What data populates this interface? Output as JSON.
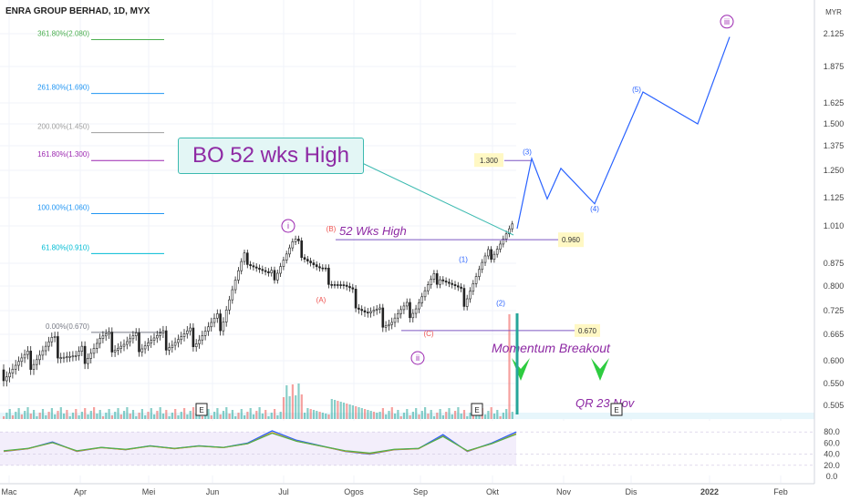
{
  "title": "ENRA GROUP BERHAD, 1D, MYX",
  "currency": "MYR",
  "callout": "BO 52 wks High",
  "annotations": {
    "wks_high": "52 Wks High",
    "momentum": "Momentum Breakout",
    "qr": "QR 23 Nov",
    "box_1300": "1.300",
    "box_0960": "0.960",
    "box_0670": "0.670",
    "earnings": "E"
  },
  "colors": {
    "up": "#26a69a",
    "down": "#ef5350",
    "projection": "#2962ff",
    "purple": "#9c27b0",
    "green_arrow": "#2ecc40",
    "callout_bg": "#e3f6f5",
    "callout_border": "#3cbab0"
  },
  "chart_data": [
    {
      "type": "candlestick",
      "title": "ENRA GROUP BERHAD, 1D, MYX",
      "x_ticks": [
        "Mac",
        "Apr",
        "Mei",
        "Jun",
        "Jul",
        "Ogos",
        "Sep",
        "Okt",
        "Nov",
        "Dis",
        "2022",
        "Feb"
      ],
      "y_ticks": [
        0.505,
        0.55,
        0.6,
        0.665,
        0.725,
        0.8,
        0.875,
        1.01,
        1.125,
        1.25,
        1.375,
        1.5,
        1.625,
        1.875,
        2.125
      ],
      "y_unit": "MYR",
      "close_series": [
        {
          "month": "Mac",
          "close": 0.58
        },
        {
          "month": "Mac",
          "close": 0.6
        },
        {
          "month": "Apr",
          "close": 0.64
        },
        {
          "month": "Apr",
          "close": 0.6
        },
        {
          "month": "Apr",
          "close": 0.65
        },
        {
          "month": "Mei",
          "close": 0.64
        },
        {
          "month": "Mei",
          "close": 0.65
        },
        {
          "month": "Jun",
          "close": 0.65
        },
        {
          "month": "Jun",
          "close": 0.66
        },
        {
          "month": "Jul",
          "close": 0.7
        },
        {
          "month": "Jul",
          "close": 0.9
        },
        {
          "month": "Jul",
          "close": 0.82
        },
        {
          "month": "Ogos",
          "close": 0.95
        },
        {
          "month": "Ogos",
          "close": 0.85
        },
        {
          "month": "Ogos",
          "close": 0.8
        },
        {
          "month": "Sep",
          "close": 0.72
        },
        {
          "month": "Sep",
          "close": 0.7
        },
        {
          "month": "Sep",
          "close": 0.74
        },
        {
          "month": "Okt",
          "close": 0.84
        },
        {
          "month": "Okt",
          "close": 0.76
        },
        {
          "month": "Okt",
          "close": 0.9
        },
        {
          "month": "Okt",
          "close": 1.0
        }
      ],
      "fibonacci": [
        {
          "label": "361.80%(2.080)",
          "value": 2.08
        },
        {
          "label": "261.80%(1.690)",
          "value": 1.69
        },
        {
          "label": "200.00%(1.450)",
          "value": 1.45
        },
        {
          "label": "161.80%(1.300)",
          "value": 1.3
        },
        {
          "label": "100.00%(1.060)",
          "value": 1.06
        },
        {
          "label": "61.80%(0.910)",
          "value": 0.91
        },
        {
          "label": "0.00%(0.670)",
          "value": 0.67
        }
      ],
      "levels": [
        {
          "name": "52 Wks High",
          "value": 0.96
        },
        {
          "name": "0.670",
          "value": 0.67
        }
      ],
      "wave_labels": [
        {
          "label": "i",
          "value": 1.0
        },
        {
          "label": "ii",
          "value": 0.6
        },
        {
          "label": "iii",
          "value": 2.2
        },
        {
          "label": "(A)",
          "value": 0.75
        },
        {
          "label": "(B)",
          "value": 0.99
        },
        {
          "label": "(C)",
          "value": 0.66
        },
        {
          "label": "(1)",
          "value": 0.88
        },
        {
          "label": "(2)",
          "value": 0.74
        },
        {
          "label": "(3)",
          "value": 1.33
        },
        {
          "label": "(4)",
          "value": 1.07
        },
        {
          "label": "(5)",
          "value": 1.7
        }
      ],
      "projection": [
        {
          "month": "Okt",
          "y": 1.0
        },
        {
          "month": "Okt",
          "y": 1.31
        },
        {
          "month": "Okt",
          "y": 1.12
        },
        {
          "month": "Nov",
          "y": 1.26
        },
        {
          "month": "Nov",
          "y": 1.1
        },
        {
          "month": "Dis",
          "y": 1.7
        },
        {
          "month": "2022",
          "y": 1.5
        },
        {
          "month": "2022",
          "y": 2.1
        }
      ]
    },
    {
      "type": "line",
      "title": "",
      "y_ticks": [
        0.0,
        20.0,
        40.0,
        60.0,
        80.0
      ],
      "series": [
        {
          "values": [
            45,
            50,
            62,
            45,
            52,
            48,
            55,
            50,
            55,
            52,
            60,
            82,
            65,
            55,
            45,
            40,
            48,
            50,
            75,
            45,
            60,
            80
          ]
        }
      ]
    }
  ]
}
